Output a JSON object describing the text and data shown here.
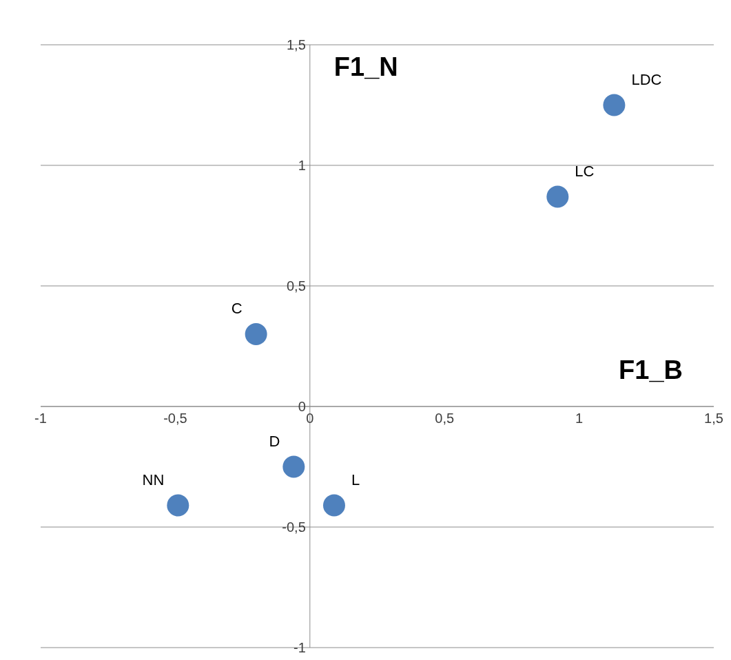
{
  "chart_data": {
    "type": "scatter",
    "xlabel": "F1_B",
    "ylabel": "F1_N",
    "x": [
      1.13,
      0.92,
      -0.2,
      -0.06,
      -0.49,
      0.09
    ],
    "values": [
      1.25,
      0.87,
      0.3,
      -0.25,
      -0.41,
      -0.41
    ],
    "color": "#4f81bd",
    "marker": "circle",
    "annotations": [
      {
        "text": "LDC",
        "x": 1.13,
        "y": 1.25
      },
      {
        "text": "LC",
        "x": 0.92,
        "y": 0.87
      },
      {
        "text": "C",
        "x": -0.2,
        "y": 0.3
      },
      {
        "text": "D",
        "x": -0.06,
        "y": -0.25
      },
      {
        "text": "NN",
        "x": -0.49,
        "y": -0.41
      },
      {
        "text": "L",
        "x": 0.09,
        "y": -0.41
      }
    ],
    "xlim": [
      -1,
      1.5
    ],
    "ylim": [
      -1,
      1.5
    ],
    "xticks": [
      -1,
      {
        "value": -0.5,
        "label": "-0,5"
      },
      0,
      {
        "value": 0.5,
        "label": "0,5"
      },
      1,
      {
        "value": 1.5,
        "label": "1,5"
      }
    ],
    "yticks": [
      -1,
      {
        "value": -0.5,
        "label": "-0,5"
      },
      0,
      {
        "value": 0.5,
        "label": "0,5"
      },
      1,
      {
        "value": 1.5,
        "label": "1,5"
      }
    ],
    "grid": "y"
  }
}
